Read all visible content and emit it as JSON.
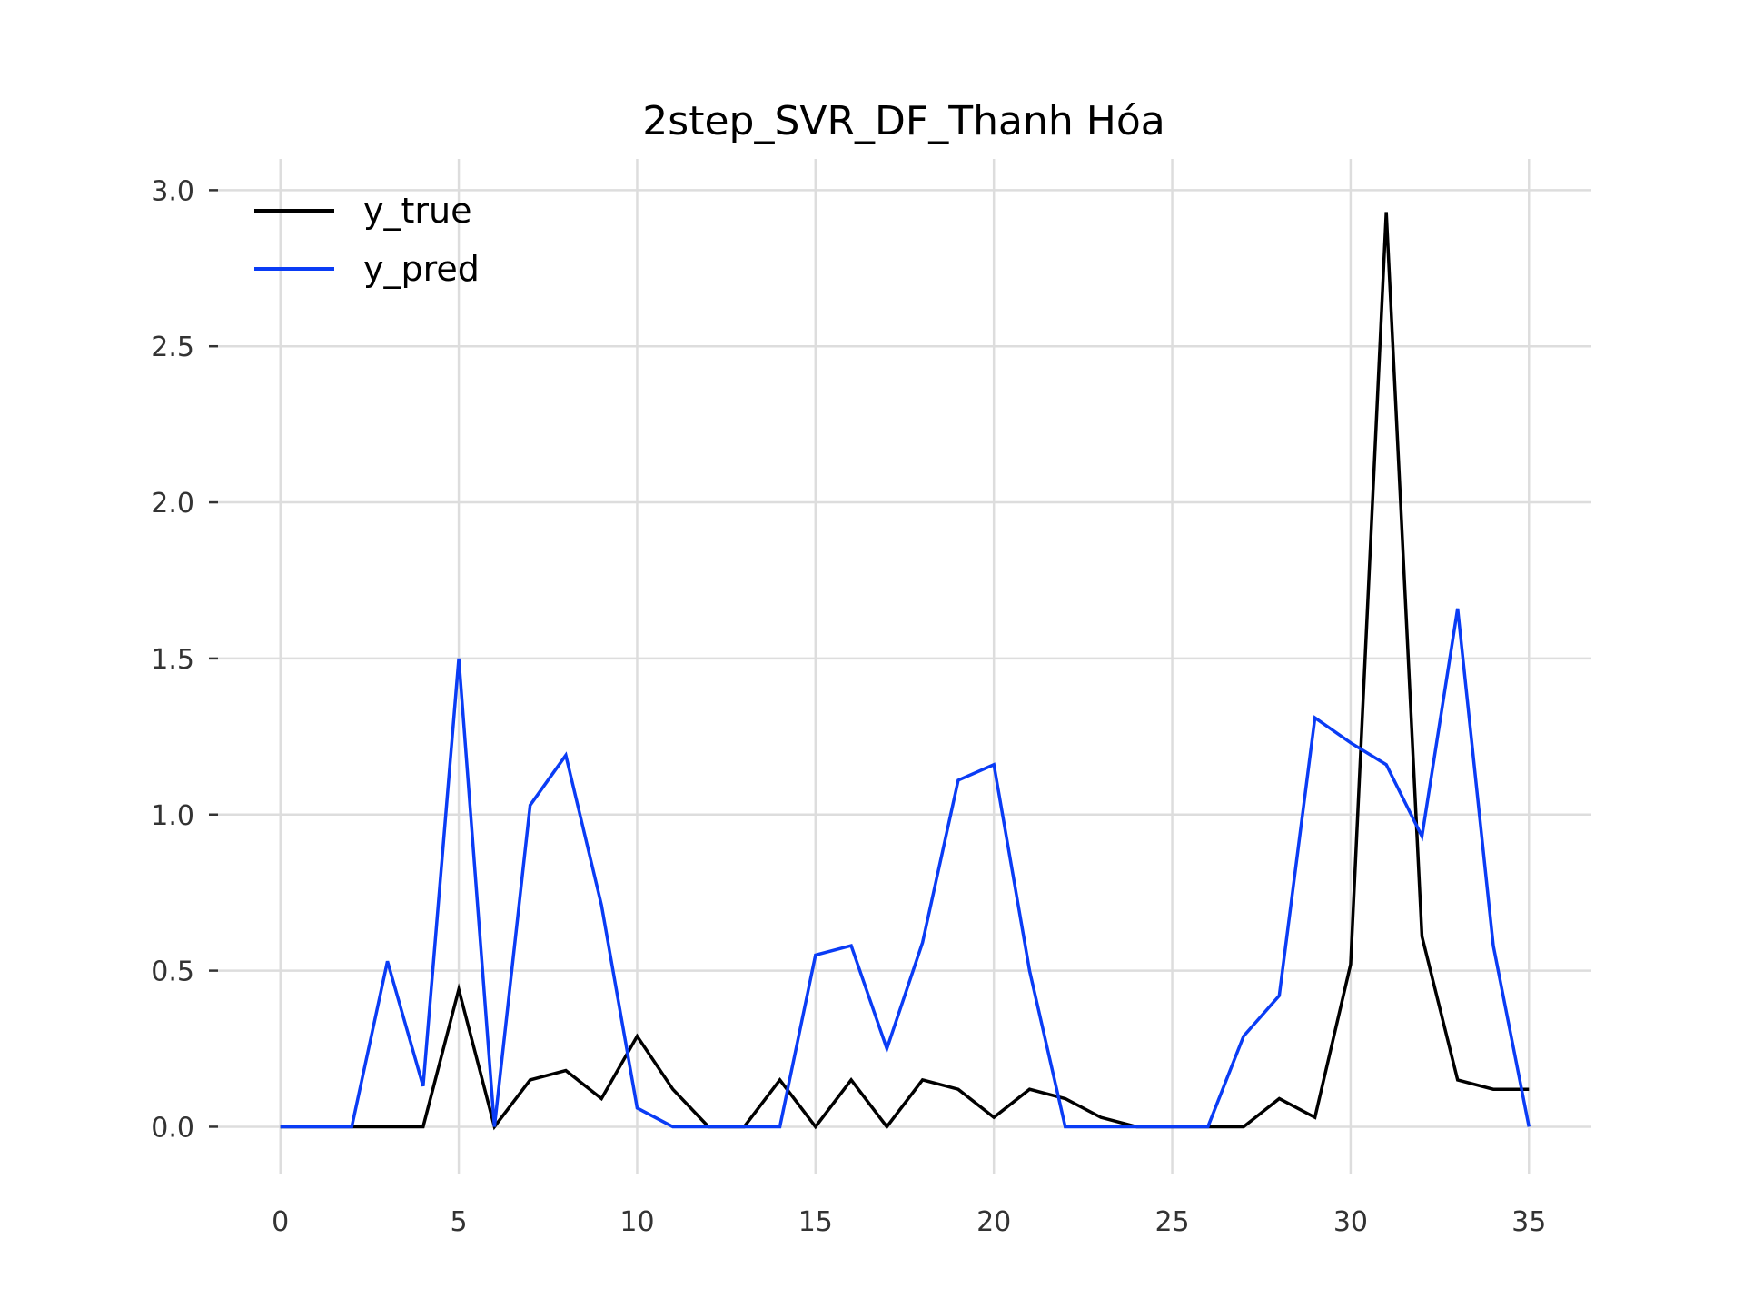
{
  "chart_data": {
    "type": "line",
    "title": "2step_SVR_DF_Thanh Hóa",
    "xlabel": "",
    "ylabel": "",
    "xlim": [
      -1.75,
      36.75
    ],
    "ylim": [
      -0.15,
      3.1
    ],
    "xticks": [
      0,
      5,
      10,
      15,
      20,
      25,
      30,
      35
    ],
    "xtick_labels": [
      "0",
      "5",
      "10",
      "15",
      "20",
      "25",
      "30",
      "35"
    ],
    "yticks": [
      0.0,
      0.5,
      1.0,
      1.5,
      2.0,
      2.5,
      3.0
    ],
    "ytick_labels": [
      "0.0",
      "0.5",
      "1.0",
      "1.5",
      "2.0",
      "2.5",
      "3.0"
    ],
    "grid": true,
    "legend_position": "upper-left",
    "x": [
      0,
      1,
      2,
      3,
      4,
      5,
      6,
      7,
      8,
      9,
      10,
      11,
      12,
      13,
      14,
      15,
      16,
      17,
      18,
      19,
      20,
      21,
      22,
      23,
      24,
      25,
      26,
      27,
      28,
      29,
      30,
      31,
      32,
      33,
      34,
      35
    ],
    "series": [
      {
        "name": "y_true",
        "color": "#000000",
        "values": [
          0,
          0,
          0,
          0,
          0,
          0.44,
          0,
          0.15,
          0.18,
          0.09,
          0.29,
          0.12,
          0,
          0,
          0.15,
          0,
          0.15,
          0,
          0.15,
          0.12,
          0.03,
          0.12,
          0.09,
          0.03,
          0,
          0,
          0,
          0,
          0.09,
          0.03,
          0.52,
          2.93,
          0.61,
          0.15,
          0.12,
          0.12
        ]
      },
      {
        "name": "y_pred",
        "color": "#0a3cf5",
        "values": [
          0,
          0,
          0,
          0.53,
          0.13,
          1.5,
          0,
          1.03,
          1.19,
          0.71,
          0.06,
          0,
          0,
          0,
          0,
          0.55,
          0.58,
          0.25,
          0.59,
          1.11,
          1.16,
          0.5,
          0,
          0,
          0,
          0,
          0,
          0.29,
          0.42,
          1.31,
          1.23,
          1.16,
          0.93,
          1.66,
          0.58,
          0
        ]
      }
    ]
  }
}
